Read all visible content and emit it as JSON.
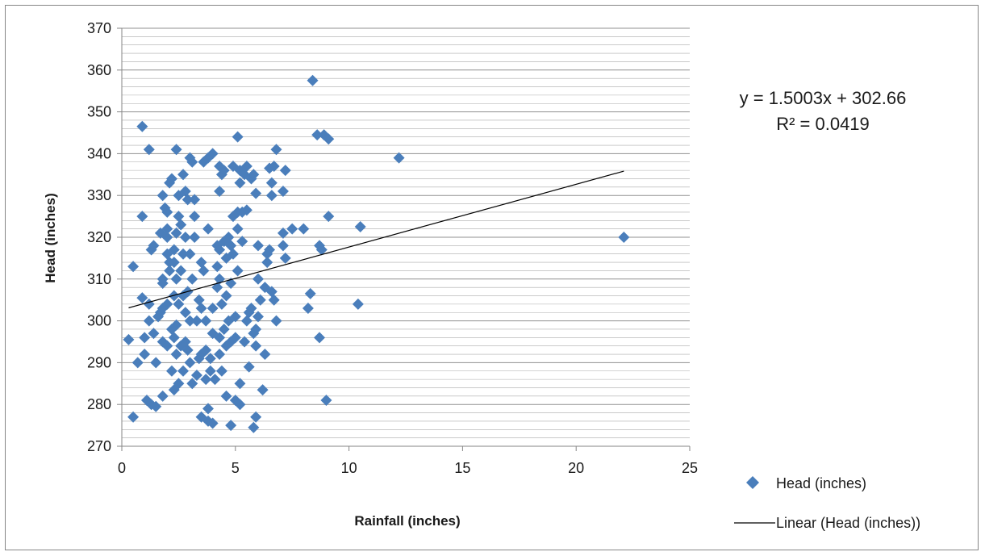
{
  "chart_data": {
    "type": "scatter",
    "title": "",
    "xlabel": "Rainfall (inches)",
    "ylabel": "Head (inches)",
    "xlim": [
      0,
      25
    ],
    "ylim": [
      270,
      370
    ],
    "x_ticks": [
      0,
      5,
      10,
      15,
      20,
      25
    ],
    "y_ticks": [
      270,
      280,
      290,
      300,
      310,
      320,
      330,
      340,
      350,
      360,
      370
    ],
    "y_minor_step": 2,
    "grid": true,
    "legend_position": "bottom-right",
    "colors": {
      "marker": "#4a7ebb",
      "trendline": "#000000",
      "gridline": "#868686"
    },
    "series": [
      {
        "name": "Head (inches)",
        "marker": "diamond",
        "points": [
          [
            0.3,
            295.5
          ],
          [
            0.5,
            313
          ],
          [
            0.5,
            277
          ],
          [
            0.7,
            290
          ],
          [
            0.9,
            346.5
          ],
          [
            0.9,
            325
          ],
          [
            0.9,
            305.5
          ],
          [
            1.0,
            296
          ],
          [
            1.0,
            292
          ],
          [
            1.1,
            281
          ],
          [
            1.2,
            341
          ],
          [
            1.2,
            304
          ],
          [
            1.2,
            300
          ],
          [
            1.3,
            317
          ],
          [
            1.3,
            280
          ],
          [
            1.4,
            318
          ],
          [
            1.4,
            297
          ],
          [
            1.5,
            290
          ],
          [
            1.5,
            279.5
          ],
          [
            1.6,
            301
          ],
          [
            1.7,
            321
          ],
          [
            1.7,
            302
          ],
          [
            1.8,
            330
          ],
          [
            1.8,
            310
          ],
          [
            1.8,
            309
          ],
          [
            1.8,
            303
          ],
          [
            1.8,
            295
          ],
          [
            1.8,
            282
          ],
          [
            1.9,
            327
          ],
          [
            2.0,
            326
          ],
          [
            2.0,
            322
          ],
          [
            2.0,
            320
          ],
          [
            2.0,
            316
          ],
          [
            2.0,
            304
          ],
          [
            2.0,
            294
          ],
          [
            2.1,
            333
          ],
          [
            2.1,
            314
          ],
          [
            2.1,
            312
          ],
          [
            2.2,
            334
          ],
          [
            2.2,
            298
          ],
          [
            2.2,
            288
          ],
          [
            2.3,
            317
          ],
          [
            2.3,
            314
          ],
          [
            2.3,
            306
          ],
          [
            2.3,
            296
          ],
          [
            2.3,
            283.5
          ],
          [
            2.4,
            341
          ],
          [
            2.4,
            321
          ],
          [
            2.4,
            310
          ],
          [
            2.4,
            299
          ],
          [
            2.4,
            292
          ],
          [
            2.5,
            330
          ],
          [
            2.5,
            325
          ],
          [
            2.5,
            304
          ],
          [
            2.5,
            285
          ],
          [
            2.6,
            323
          ],
          [
            2.6,
            312
          ],
          [
            2.6,
            294
          ],
          [
            2.7,
            335
          ],
          [
            2.7,
            316
          ],
          [
            2.7,
            306
          ],
          [
            2.7,
            288
          ],
          [
            2.8,
            331
          ],
          [
            2.8,
            320
          ],
          [
            2.8,
            302
          ],
          [
            2.8,
            295
          ],
          [
            2.9,
            329
          ],
          [
            2.9,
            307
          ],
          [
            2.9,
            293
          ],
          [
            3.0,
            339
          ],
          [
            3.0,
            316
          ],
          [
            3.0,
            300
          ],
          [
            3.0,
            290
          ],
          [
            3.1,
            338
          ],
          [
            3.1,
            310
          ],
          [
            3.1,
            285
          ],
          [
            3.2,
            329
          ],
          [
            3.2,
            325
          ],
          [
            3.2,
            320
          ],
          [
            3.3,
            300
          ],
          [
            3.3,
            287
          ],
          [
            3.4,
            305
          ],
          [
            3.4,
            291
          ],
          [
            3.5,
            314
          ],
          [
            3.5,
            303
          ],
          [
            3.5,
            292
          ],
          [
            3.5,
            277
          ],
          [
            3.6,
            338
          ],
          [
            3.6,
            312
          ],
          [
            3.7,
            300
          ],
          [
            3.7,
            293
          ],
          [
            3.7,
            286
          ],
          [
            3.8,
            339
          ],
          [
            3.8,
            322
          ],
          [
            3.8,
            279
          ],
          [
            3.8,
            276
          ],
          [
            3.9,
            291
          ],
          [
            3.9,
            288
          ],
          [
            4.0,
            340
          ],
          [
            4.0,
            303
          ],
          [
            4.0,
            297
          ],
          [
            4.0,
            275.5
          ],
          [
            4.1,
            286
          ],
          [
            4.2,
            318
          ],
          [
            4.2,
            313
          ],
          [
            4.2,
            308
          ],
          [
            4.3,
            337
          ],
          [
            4.3,
            331
          ],
          [
            4.3,
            317
          ],
          [
            4.3,
            310
          ],
          [
            4.3,
            296
          ],
          [
            4.3,
            292
          ],
          [
            4.4,
            335
          ],
          [
            4.4,
            304
          ],
          [
            4.4,
            288
          ],
          [
            4.5,
            336
          ],
          [
            4.5,
            319
          ],
          [
            4.5,
            298
          ],
          [
            4.6,
            315
          ],
          [
            4.6,
            306
          ],
          [
            4.6,
            294
          ],
          [
            4.6,
            282
          ],
          [
            4.7,
            320
          ],
          [
            4.7,
            300
          ],
          [
            4.8,
            318
          ],
          [
            4.8,
            309
          ],
          [
            4.8,
            295
          ],
          [
            4.8,
            275
          ],
          [
            4.9,
            337
          ],
          [
            4.9,
            325
          ],
          [
            4.9,
            316
          ],
          [
            5.0,
            301
          ],
          [
            5.0,
            296
          ],
          [
            5.0,
            281
          ],
          [
            5.1,
            344
          ],
          [
            5.1,
            326
          ],
          [
            5.1,
            322
          ],
          [
            5.1,
            312
          ],
          [
            5.2,
            336
          ],
          [
            5.2,
            333
          ],
          [
            5.2,
            285
          ],
          [
            5.2,
            280
          ],
          [
            5.3,
            326
          ],
          [
            5.3,
            319
          ],
          [
            5.4,
            335
          ],
          [
            5.4,
            295
          ],
          [
            5.5,
            337
          ],
          [
            5.5,
            326.5
          ],
          [
            5.5,
            300
          ],
          [
            5.6,
            289
          ],
          [
            5.6,
            302
          ],
          [
            5.7,
            334
          ],
          [
            5.7,
            303
          ],
          [
            5.8,
            335
          ],
          [
            5.8,
            297
          ],
          [
            5.8,
            274.5
          ],
          [
            5.9,
            330.5
          ],
          [
            5.9,
            298
          ],
          [
            5.9,
            277
          ],
          [
            5.9,
            294
          ],
          [
            6.0,
            310
          ],
          [
            6.0,
            301
          ],
          [
            6.0,
            318
          ],
          [
            6.1,
            305
          ],
          [
            6.2,
            283.5
          ],
          [
            6.3,
            308
          ],
          [
            6.3,
            292
          ],
          [
            6.4,
            316
          ],
          [
            6.4,
            314
          ],
          [
            6.5,
            336.5
          ],
          [
            6.5,
            317
          ],
          [
            6.6,
            330
          ],
          [
            6.6,
            333
          ],
          [
            6.6,
            307
          ],
          [
            6.7,
            337
          ],
          [
            6.7,
            305
          ],
          [
            6.8,
            341
          ],
          [
            6.8,
            300
          ],
          [
            7.1,
            318
          ],
          [
            7.1,
            331
          ],
          [
            7.1,
            321
          ],
          [
            7.2,
            336
          ],
          [
            7.2,
            315
          ],
          [
            7.5,
            322
          ],
          [
            8.0,
            322
          ],
          [
            8.2,
            303
          ],
          [
            8.3,
            306.5
          ],
          [
            8.4,
            357.5
          ],
          [
            8.6,
            344.5
          ],
          [
            8.7,
            318
          ],
          [
            8.7,
            296
          ],
          [
            8.8,
            317
          ],
          [
            8.9,
            344.5
          ],
          [
            9.0,
            281
          ],
          [
            9.1,
            343.5
          ],
          [
            9.1,
            325
          ],
          [
            10.4,
            304
          ],
          [
            10.5,
            322.5
          ],
          [
            12.2,
            339
          ],
          [
            22.1,
            320
          ]
        ]
      }
    ],
    "trendline": {
      "name": "Linear (Head (inches))",
      "slope": 1.5003,
      "intercept": 302.66,
      "x_start": 0.3,
      "x_end": 22.1,
      "equation_text": "y = 1.5003x + 302.66",
      "r2_text": "R² = 0.0419"
    }
  }
}
